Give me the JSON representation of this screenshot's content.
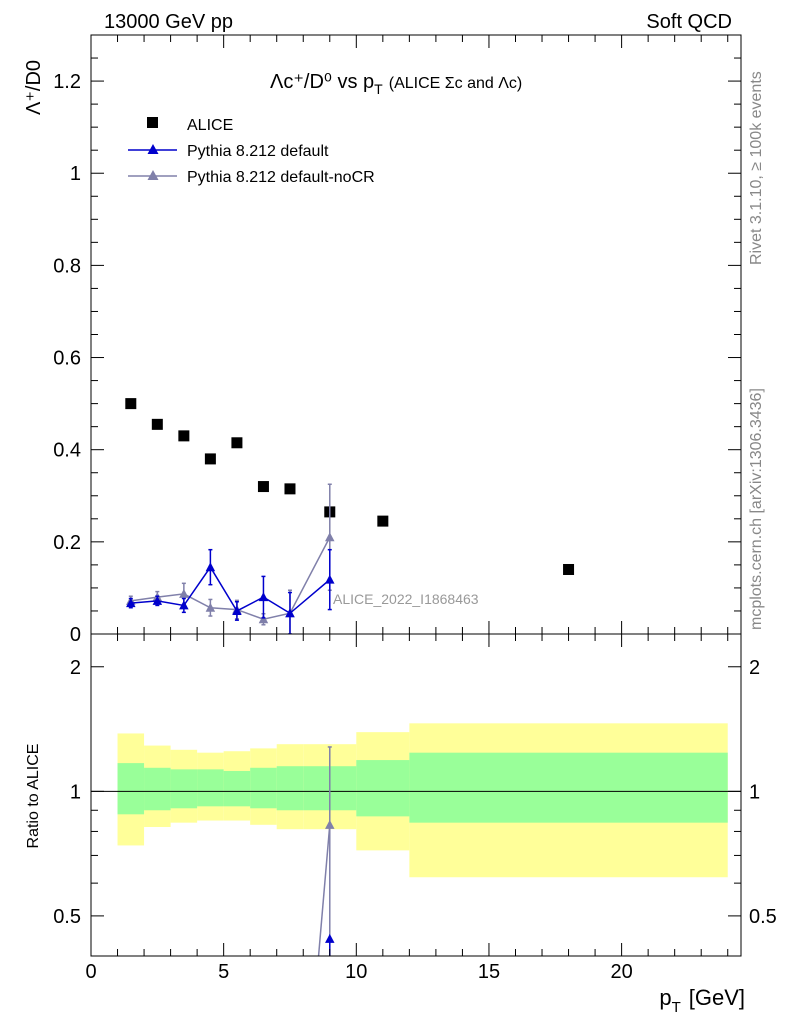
{
  "header": {
    "energy_label": "13000 GeV pp",
    "category_label": "Soft QCD"
  },
  "side_labels": {
    "rivet": "Rivet 3.1.10, ≥ 100k events",
    "mcplots": "mcplots.cern.ch [arXiv:1306.3436]"
  },
  "main_plot": {
    "title_main": "Λc⁺/D⁰ vs p",
    "title_sub_T": "T",
    "title_suffix": "(ALICE Σc and Λc)",
    "ylabel": "Λ⁺/D0",
    "ylabel_sub": "c",
    "analysis_label": "ALICE_2022_I1868463",
    "yticks": [
      "0",
      "0.2",
      "0.4",
      "0.6",
      "0.8",
      "1",
      "1.2"
    ]
  },
  "ratio_plot": {
    "ylabel": "Ratio to ALICE",
    "yticks": [
      "0.5",
      "1",
      "2"
    ]
  },
  "xaxis": {
    "label_p": "p",
    "label_sub": "T",
    "label_unit": "[GeV]",
    "ticks": [
      "0",
      "5",
      "10",
      "15",
      "20"
    ]
  },
  "legend": {
    "alice": "ALICE",
    "pythia": "Pythia 8.212 default",
    "pythia_nocr": "Pythia 8.212 default-noCR"
  },
  "colors": {
    "alice": "#000000",
    "pythia": "#0000cc",
    "pythia_nocr": "#8080aa",
    "band_inner": "#99ff99",
    "band_outer": "#ffff99"
  },
  "chart_data": {
    "type": "scatter",
    "xlim": [
      0,
      24.5
    ],
    "ylim": [
      0,
      1.3
    ],
    "ratio_ylim": [
      0.4,
      2.4
    ],
    "ratio_scale": "log",
    "series": [
      {
        "name": "ALICE",
        "x": [
          1.5,
          2.5,
          3.5,
          4.5,
          5.5,
          6.5,
          7.5,
          9.0,
          11.0,
          18.0
        ],
        "y": [
          0.5,
          0.455,
          0.43,
          0.38,
          0.415,
          0.32,
          0.315,
          0.265,
          0.245,
          0.14
        ]
      },
      {
        "name": "Pythia 8.212 default",
        "x": [
          1.5,
          2.5,
          3.5,
          4.5,
          5.5,
          6.5,
          7.5,
          9.0
        ],
        "y": [
          0.067,
          0.072,
          0.062,
          0.145,
          0.05,
          0.08,
          0.045,
          0.118
        ],
        "err": [
          0.01,
          0.01,
          0.015,
          0.038,
          0.02,
          0.045,
          0.045,
          0.065
        ]
      },
      {
        "name": "Pythia 8.212 default-noCR",
        "x": [
          1.5,
          2.5,
          3.5,
          4.5,
          5.5,
          6.5,
          7.5,
          9.0
        ],
        "y": [
          0.072,
          0.08,
          0.087,
          0.057,
          0.053,
          0.032,
          0.045,
          0.21
        ],
        "err": [
          0.01,
          0.012,
          0.023,
          0.018,
          0.02,
          0.012,
          0.05,
          0.115
        ]
      }
    ],
    "ratio_band": {
      "edges": [
        1,
        2,
        3,
        4,
        5,
        6,
        7,
        8,
        10,
        12,
        24
      ],
      "inner_lo": [
        0.88,
        0.9,
        0.91,
        0.92,
        0.92,
        0.91,
        0.9,
        0.9,
        0.87,
        0.84
      ],
      "inner_hi": [
        1.17,
        1.14,
        1.13,
        1.13,
        1.12,
        1.14,
        1.15,
        1.15,
        1.19,
        1.24
      ],
      "outer_lo": [
        0.74,
        0.82,
        0.84,
        0.85,
        0.85,
        0.83,
        0.81,
        0.81,
        0.72,
        0.62
      ],
      "outer_hi": [
        1.38,
        1.29,
        1.26,
        1.24,
        1.25,
        1.27,
        1.3,
        1.3,
        1.39,
        1.46
      ]
    },
    "ratio_series": [
      {
        "name": "Pythia 8.212 default",
        "x": [
          9.0
        ],
        "y": [
          0.44
        ]
      },
      {
        "name": "Pythia 8.212 default-noCR",
        "x": [
          8.5,
          9.0
        ],
        "y": [
          0.35,
          0.83
        ],
        "err": [
          0,
          0.45
        ]
      }
    ]
  }
}
